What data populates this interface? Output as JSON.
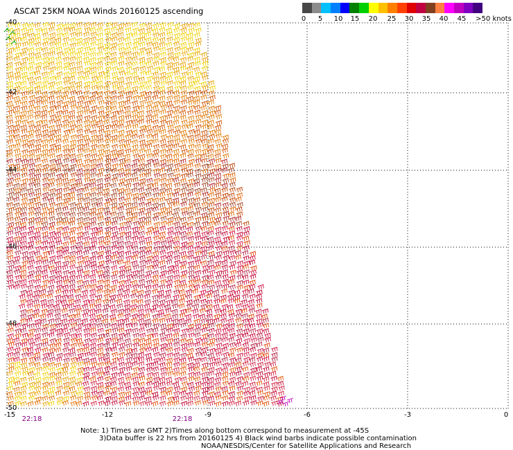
{
  "header": {
    "title": "ASCAT 25KM NOAA Winds 20160125 ascending"
  },
  "colorbar": {
    "swatch_colors": [
      "#474747",
      "#8c8c8c",
      "#00c0ff",
      "#0080ff",
      "#0000ff",
      "#008000",
      "#00d000",
      "#ffff00",
      "#ffc000",
      "#ff8000",
      "#ff4000",
      "#e00000",
      "#c00040",
      "#804020",
      "#ff8040",
      "#ff00ff",
      "#c000c0",
      "#8000c0",
      "#400080"
    ],
    "labels": [
      "0",
      "5",
      "10",
      "15",
      "20",
      "25",
      "30",
      "35",
      "40",
      "45",
      ">50 knots"
    ]
  },
  "axes": {
    "lat_labels": [
      "-40",
      "-42",
      "-44",
      "-46",
      "-48",
      "-50"
    ],
    "lon_labels": [
      "-15",
      "-12",
      "-9",
      "-6",
      "-3",
      "0"
    ],
    "time_labels": [
      "22:18",
      "22:18"
    ]
  },
  "notes": {
    "line1": "Note: 1) Times are GMT 2)Times along bottom correspond to measurement at -45S",
    "line2": "3)Data buffer is 22 hrs from 20160125 4) Black wind barbs indicate possible contamination",
    "line3": "NOAA/NESDIS/Center for Satellite Applications and Research"
  }
}
